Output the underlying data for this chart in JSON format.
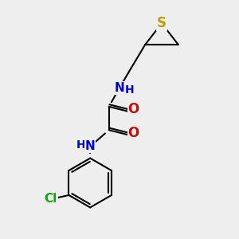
{
  "bg_color": "#eeeeee",
  "bond_color": "#000000",
  "S_color": "#b8a000",
  "N_color": "#0000cc",
  "O_color": "#cc0000",
  "Cl_color": "#00aa00",
  "linewidth": 1.5,
  "figsize": [
    3.0,
    3.0
  ],
  "dpi": 100,
  "xlim": [
    0,
    10
  ],
  "ylim": [
    0,
    10
  ]
}
